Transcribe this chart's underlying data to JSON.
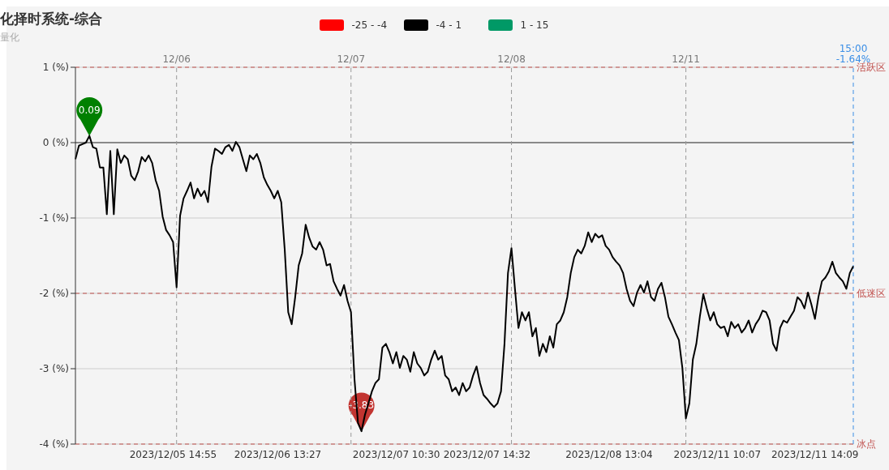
{
  "chart_data": {
    "type": "line",
    "title": "化择时系统-综合",
    "subtitle": "量化",
    "categories": [
      null,
      null,
      null,
      null,
      null,
      null,
      null,
      null,
      null,
      null,
      null,
      null,
      null,
      null,
      null,
      null,
      null,
      null,
      null,
      null,
      null,
      null,
      null,
      null,
      null,
      null,
      null,
      null,
      "2023/12/05 14:55",
      null,
      null,
      null,
      null,
      null,
      null,
      null,
      null,
      null,
      null,
      null,
      null,
      null,
      null,
      null,
      null,
      null,
      null,
      null,
      null,
      null,
      null,
      null,
      null,
      null,
      null,
      null,
      null,
      null,
      "2023/12/06 13:27",
      null,
      null,
      null,
      null,
      null,
      null,
      null,
      null,
      null,
      null,
      null,
      null,
      null,
      null,
      null,
      null,
      null,
      null,
      null,
      null,
      null,
      null,
      null,
      null,
      null,
      null,
      null,
      null,
      null,
      null,
      null,
      null,
      null,
      "2023/12/07 10:30",
      null,
      null,
      null,
      null,
      null,
      null,
      null,
      null,
      null,
      null,
      null,
      null,
      null,
      null,
      null,
      null,
      null,
      null,
      null,
      null,
      null,
      null,
      null,
      null,
      null,
      "2023/12/07 14:32",
      null,
      null,
      null,
      null,
      null,
      null,
      null,
      null,
      null,
      null,
      null,
      null,
      null,
      null,
      null,
      null,
      null,
      null,
      null,
      null,
      null,
      null,
      null,
      null,
      null,
      null,
      null,
      null,
      null,
      null,
      null,
      null,
      null,
      null,
      "2023/12/08 13:04",
      null,
      null,
      null,
      null,
      null,
      null,
      null,
      null,
      null,
      null,
      null,
      null,
      null,
      null,
      null,
      null,
      null,
      null,
      null,
      null,
      null,
      null,
      null,
      null,
      null,
      null,
      null,
      null,
      null,
      null,
      "2023/12/11 10:07",
      null,
      null,
      null,
      null,
      null,
      null,
      null,
      null,
      null,
      null,
      null,
      null,
      null,
      null,
      null,
      null,
      null,
      null,
      null,
      null,
      null,
      null,
      null,
      null,
      null,
      null,
      null,
      "2023/12/11 14:09",
      null,
      null,
      null,
      null,
      null,
      null,
      null,
      null,
      null,
      null,
      null
    ],
    "series": [
      {
        "name": "-25 - -4",
        "color": "#ff0000",
        "values": [
          null,
          null,
          null,
          null,
          null,
          null,
          null,
          null,
          null,
          null,
          null,
          null,
          null,
          null,
          null,
          null,
          null,
          null,
          null,
          null,
          null,
          null,
          null,
          null,
          null,
          null,
          null,
          null,
          null,
          null,
          null,
          null,
          null,
          null,
          null,
          null,
          null,
          null,
          null,
          null,
          null,
          null,
          null,
          null,
          null,
          null,
          null,
          null,
          null,
          null,
          null,
          null,
          null,
          null,
          null,
          null,
          null,
          null,
          null,
          null,
          null,
          null,
          null,
          null,
          null,
          null,
          null,
          null,
          null,
          null,
          null,
          null,
          null,
          null,
          null,
          null,
          null,
          null,
          null,
          null,
          null,
          null,
          null,
          null,
          null,
          null,
          null,
          null,
          null,
          null,
          null,
          null,
          null,
          null,
          null,
          null,
          null,
          null,
          null,
          null,
          null,
          null,
          null,
          null,
          null,
          null,
          null,
          null,
          null,
          null,
          null,
          null,
          null,
          null,
          null,
          null,
          null,
          null,
          null,
          null,
          null,
          null,
          null,
          null,
          null,
          null,
          null,
          null,
          null,
          null,
          null,
          null,
          null,
          null,
          null,
          null,
          null,
          null,
          null,
          null,
          null,
          null,
          null,
          null,
          null,
          null,
          null,
          null,
          null,
          null,
          null,
          null,
          null,
          null,
          null,
          null,
          null,
          null,
          null,
          null,
          null,
          null,
          null,
          null,
          null,
          null,
          null,
          null,
          null,
          null,
          null,
          null,
          null,
          null,
          null,
          null,
          null,
          null,
          null,
          null,
          null,
          null,
          null,
          null,
          null,
          null,
          null,
          null,
          null,
          null,
          null,
          null,
          null,
          null,
          null,
          null,
          null,
          null,
          null,
          null,
          null,
          null,
          null,
          null,
          null,
          null,
          null,
          null,
          null,
          null,
          null,
          null,
          null,
          null,
          null,
          null,
          null,
          null,
          null,
          null,
          null,
          null,
          null,
          null
        ]
      },
      {
        "name": "-4 - 1",
        "color": "#000000",
        "values": [
          -0.22,
          -0.04,
          -0.02,
          0.0,
          0.09,
          -0.06,
          -0.08,
          -0.33,
          -0.33,
          -0.95,
          -0.11,
          -0.95,
          -0.09,
          -0.27,
          -0.17,
          -0.22,
          -0.44,
          -0.5,
          -0.38,
          -0.19,
          -0.25,
          -0.17,
          -0.27,
          -0.5,
          -0.64,
          -0.98,
          -1.16,
          -1.23,
          -1.32,
          -1.92,
          -0.97,
          -0.74,
          -0.64,
          -0.53,
          -0.74,
          -0.61,
          -0.71,
          -0.64,
          -0.79,
          -0.32,
          -0.08,
          -0.11,
          -0.15,
          -0.06,
          -0.03,
          -0.11,
          0.01,
          -0.06,
          -0.22,
          -0.38,
          -0.17,
          -0.22,
          -0.15,
          -0.27,
          -0.46,
          -0.56,
          -0.64,
          -0.74,
          -0.64,
          -0.79,
          -1.42,
          -2.25,
          -2.41,
          -2.05,
          -1.63,
          -1.47,
          -1.09,
          -1.26,
          -1.38,
          -1.42,
          -1.32,
          -1.42,
          -1.63,
          -1.61,
          -1.84,
          -1.94,
          -2.03,
          -1.89,
          -2.1,
          -2.25,
          -3.14,
          -3.72,
          -3.83,
          -3.61,
          -3.46,
          -3.3,
          -3.19,
          -3.14,
          -2.72,
          -2.67,
          -2.78,
          -2.93,
          -2.78,
          -2.99,
          -2.83,
          -2.88,
          -3.04,
          -2.78,
          -2.93,
          -2.99,
          -3.09,
          -3.04,
          -2.88,
          -2.76,
          -2.88,
          -2.83,
          -3.09,
          -3.14,
          -3.3,
          -3.25,
          -3.35,
          -3.19,
          -3.3,
          -3.25,
          -3.09,
          -2.97,
          -3.19,
          -3.35,
          -3.4,
          -3.46,
          -3.51,
          -3.46,
          -3.3,
          -2.67,
          -1.73,
          -1.4,
          -1.94,
          -2.46,
          -2.25,
          -2.36,
          -2.25,
          -2.57,
          -2.46,
          -2.83,
          -2.67,
          -2.78,
          -2.57,
          -2.72,
          -2.41,
          -2.36,
          -2.25,
          -2.05,
          -1.73,
          -1.52,
          -1.42,
          -1.47,
          -1.37,
          -1.19,
          -1.32,
          -1.21,
          -1.26,
          -1.23,
          -1.37,
          -1.42,
          -1.52,
          -1.58,
          -1.63,
          -1.73,
          -1.94,
          -2.1,
          -2.17,
          -1.99,
          -1.89,
          -1.99,
          -1.84,
          -2.05,
          -2.1,
          -1.94,
          -1.86,
          -2.05,
          -2.31,
          -2.41,
          -2.52,
          -2.62,
          -2.99,
          -3.66,
          -3.46,
          -2.88,
          -2.67,
          -2.31,
          -2.01,
          -2.2,
          -2.36,
          -2.25,
          -2.41,
          -2.46,
          -2.44,
          -2.57,
          -2.38,
          -2.46,
          -2.41,
          -2.52,
          -2.46,
          -2.36,
          -2.52,
          -2.41,
          -2.34,
          -2.23,
          -2.25,
          -2.36,
          -2.67,
          -2.76,
          -2.46,
          -2.36,
          -2.39,
          -2.31,
          -2.23,
          -2.05,
          -2.1,
          -2.2,
          -1.99,
          -2.15,
          -2.34,
          -2.05,
          -1.84,
          -1.79,
          -1.71,
          -1.58,
          -1.73,
          -1.79,
          -1.84,
          -1.94,
          -1.73,
          -1.64
        ]
      },
      {
        "name": "1 - 15",
        "color": "#009966",
        "values": [
          null,
          null,
          null,
          null,
          null,
          null,
          null,
          null,
          null,
          null,
          null,
          null,
          null,
          null,
          null,
          null,
          null,
          null,
          null,
          null,
          null,
          null,
          null,
          null,
          null,
          null,
          null,
          null,
          null,
          null,
          null,
          null,
          null,
          null,
          null,
          null,
          null,
          null,
          null,
          null,
          null,
          null,
          null,
          null,
          null,
          null,
          null,
          null,
          null,
          null,
          null,
          null,
          null,
          null,
          null,
          null,
          null,
          null,
          null,
          null,
          null,
          null,
          null,
          null,
          null,
          null,
          null,
          null,
          null,
          null,
          null,
          null,
          null,
          null,
          null,
          null,
          null,
          null,
          null,
          null,
          null,
          null,
          null,
          null,
          null,
          null,
          null,
          null,
          null,
          null,
          null,
          null,
          null,
          null,
          null,
          null,
          null,
          null,
          null,
          null,
          null,
          null,
          null,
          null,
          null,
          null,
          null,
          null,
          null,
          null,
          null,
          null,
          null,
          null,
          null,
          null,
          null,
          null,
          null,
          null,
          null,
          null,
          null,
          null,
          null,
          null,
          null,
          null,
          null,
          null,
          null,
          null,
          null,
          null,
          null,
          null,
          null,
          null,
          null,
          null,
          null,
          null,
          null,
          null,
          null,
          null,
          null,
          null,
          null,
          null,
          null,
          null,
          null,
          null,
          null,
          null,
          null,
          null,
          null,
          null,
          null,
          null,
          null,
          null,
          null,
          null,
          null,
          null,
          null,
          null,
          null,
          null,
          null,
          null,
          null,
          null,
          null,
          null,
          null,
          null,
          null,
          null,
          null,
          null,
          null,
          null,
          null,
          null,
          null,
          null,
          null,
          null,
          null,
          null,
          null,
          null,
          null,
          null,
          null,
          null,
          null,
          null,
          null,
          null,
          null,
          null,
          null,
          null,
          null,
          null,
          null,
          null,
          null,
          null,
          null,
          null,
          null,
          null,
          null,
          null,
          null,
          null,
          null,
          null
        ]
      }
    ],
    "ylim": [
      -4,
      1
    ],
    "yticks": [
      {
        "value": -4,
        "label": "-4 (%)"
      },
      {
        "value": -3,
        "label": "-3 (%)"
      },
      {
        "value": -2,
        "label": "-2 (%)"
      },
      {
        "value": -1,
        "label": "-1 (%)"
      },
      {
        "value": 0,
        "label": "0 (%)"
      },
      {
        "value": 1,
        "label": "1 (%)"
      }
    ],
    "grid": "y",
    "legend": "top",
    "line_style": "solid",
    "ref_lines": [
      {
        "axis": "y",
        "value": 1,
        "label": "活跃区",
        "color": "#c0504d",
        "line_style": "dashed"
      },
      {
        "axis": "y",
        "value": -2,
        "label": "低迷区",
        "color": "#c0504d",
        "line_style": "dashed"
      },
      {
        "axis": "y",
        "value": -4,
        "label": "冰点",
        "color": "#c0504d",
        "line_style": "dashed"
      }
    ],
    "annotations": [
      {
        "text": "0.09",
        "y": 0.09
      },
      {
        "text": "-3.83",
        "y": -3.83
      },
      "12/06",
      "12/07",
      "12/08",
      "12/11",
      "15:00 -1.64%"
    ]
  }
}
